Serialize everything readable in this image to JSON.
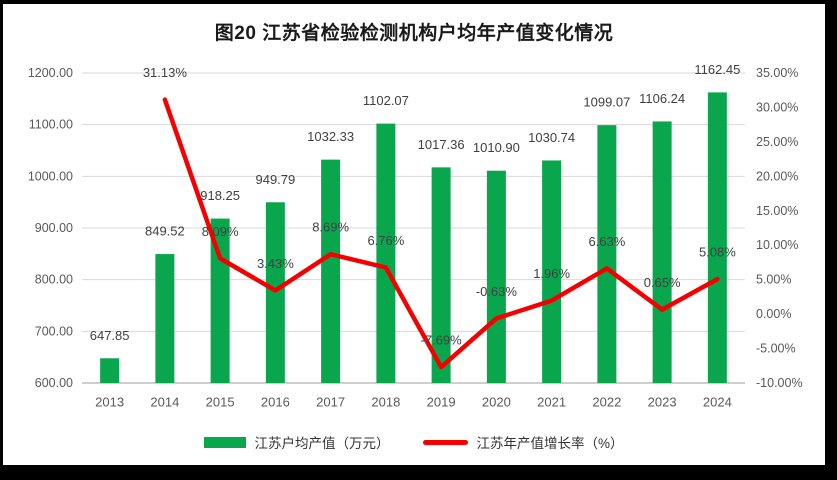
{
  "title": "图20  江苏省检验检测机构户均年产值变化情况",
  "colors": {
    "bar_green": "#0aa64e",
    "line_red": "#f40000",
    "gridline": "#d9d9d9",
    "axis_line": "#bfbfbf",
    "tick_text": "#595959",
    "data_label_text": "#404040",
    "title_text": "#1a1a1a"
  },
  "chart_data": {
    "type": "combo-bar-line",
    "title": "图20  江苏省检验检测机构户均年产值变化情况",
    "categories": [
      "2013",
      "2014",
      "2015",
      "2016",
      "2017",
      "2018",
      "2019",
      "2020",
      "2021",
      "2022",
      "2023",
      "2024"
    ],
    "series": [
      {
        "name": "江苏户均产值（万元）",
        "type": "bar",
        "axis": "left",
        "values": [
          647.85,
          849.52,
          918.25,
          949.79,
          1032.33,
          1102.07,
          1017.36,
          1010.9,
          1030.74,
          1099.07,
          1106.24,
          1162.45
        ],
        "labels": [
          "647.85",
          "849.52",
          "918.25",
          "949.79",
          "1032.33",
          "1102.07",
          "1017.36",
          "1010.90",
          "1030.74",
          "1099.07",
          "1106.24",
          "1162.45"
        ]
      },
      {
        "name": "江苏年产值增长率（%）",
        "type": "line",
        "axis": "right",
        "values": [
          null,
          31.13,
          8.09,
          3.43,
          8.69,
          6.76,
          -7.69,
          -0.63,
          1.96,
          6.63,
          0.65,
          5.08
        ],
        "labels": [
          null,
          "31.13%",
          "8.09%",
          "3.43%",
          "8.69%",
          "6.76%",
          "-7.69%",
          "-0.63%",
          "1.96%",
          "6.63%",
          "0.65%",
          "5.08%"
        ]
      }
    ],
    "left_axis": {
      "min": 600,
      "max": 1200,
      "step": 100,
      "tick_labels": [
        "600.00",
        "700.00",
        "800.00",
        "900.00",
        "1000.00",
        "1100.00",
        "1200.00"
      ]
    },
    "right_axis": {
      "min": -10,
      "max": 35,
      "step": 5,
      "tick_labels": [
        "-10.00%",
        "-5.00%",
        "0.00%",
        "5.00%",
        "10.00%",
        "15.00%",
        "20.00%",
        "25.00%",
        "30.00%",
        "35.00%"
      ]
    },
    "grid": true,
    "legend_position": "bottom"
  },
  "legend": {
    "items": [
      {
        "label": "江苏户均产值（万元）",
        "swatch": "bar"
      },
      {
        "label": "江苏年产值增长率（%）",
        "swatch": "line"
      }
    ]
  }
}
